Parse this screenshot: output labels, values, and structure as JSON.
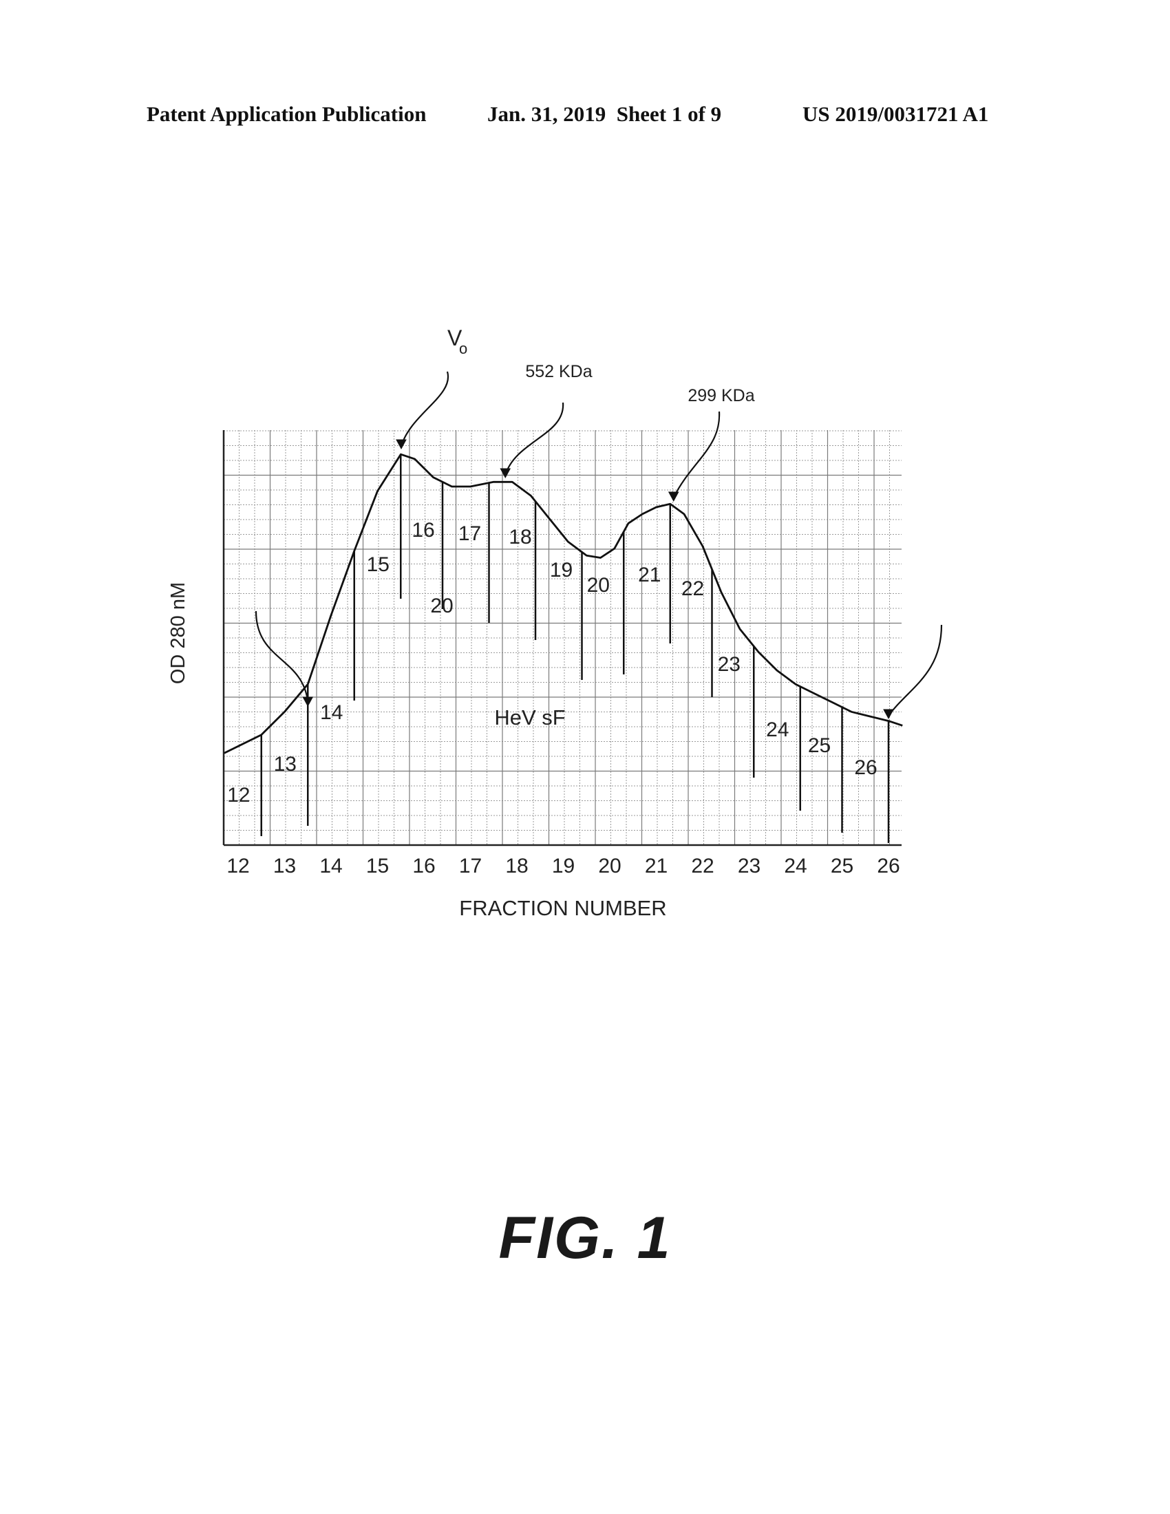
{
  "header": {
    "publication": "Patent Application Publication",
    "date_sheet": "Jan. 31, 2019  Sheet 1 of 9",
    "number": "US 2019/0031721 A1"
  },
  "figure_label": "FIG. 1",
  "chart_data": {
    "type": "line",
    "xlabel": "FRACTION NUMBER",
    "ylabel": "OD 280 nM",
    "xlim": [
      11.7,
      26.3
    ],
    "ylim": [
      0,
      1
    ],
    "x_ticks": [
      "12",
      "13",
      "14",
      "15",
      "16",
      "17",
      "18",
      "19",
      "20",
      "21",
      "22",
      "23",
      "24",
      "25",
      "26"
    ],
    "grid": true,
    "series": [
      {
        "name": "HeV sF",
        "x": [
          11.7,
          12.5,
          13.0,
          13.5,
          14.0,
          14.5,
          15.0,
          15.5,
          15.8,
          16.2,
          16.6,
          17.0,
          17.5,
          17.9,
          18.3,
          18.7,
          19.1,
          19.5,
          19.8,
          20.1,
          20.4,
          20.7,
          21.0,
          21.3,
          21.6,
          22.0,
          22.4,
          22.8,
          23.2,
          23.6,
          24.0,
          24.4,
          24.8,
          25.2,
          25.6,
          26.0,
          26.3
        ],
        "y": [
          0.2,
          0.24,
          0.29,
          0.35,
          0.5,
          0.64,
          0.77,
          0.85,
          0.84,
          0.8,
          0.78,
          0.78,
          0.79,
          0.79,
          0.76,
          0.71,
          0.66,
          0.63,
          0.625,
          0.645,
          0.7,
          0.72,
          0.735,
          0.742,
          0.72,
          0.65,
          0.55,
          0.47,
          0.42,
          0.38,
          0.35,
          0.33,
          0.31,
          0.29,
          0.28,
          0.27,
          0.26
        ]
      }
    ],
    "fraction_markers": [
      {
        "x": 12.5,
        "label": "12"
      },
      {
        "x": 13.5,
        "label": "13"
      },
      {
        "x": 14.5,
        "label": "14"
      },
      {
        "x": 15.5,
        "label": "15"
      },
      {
        "x": 16.4,
        "label": "16"
      },
      {
        "x": 17.4,
        "label": "17"
      },
      {
        "x": 18.4,
        "label": "18"
      },
      {
        "x": 19.4,
        "label": "19"
      },
      {
        "x": 20.3,
        "label": "20"
      },
      {
        "x": 21.3,
        "label": "21"
      },
      {
        "x": 22.2,
        "label": "22"
      },
      {
        "x": 23.1,
        "label": "23"
      },
      {
        "x": 24.1,
        "label": "24"
      },
      {
        "x": 25.0,
        "label": "25"
      },
      {
        "x": 26.0,
        "label": "26"
      }
    ],
    "annotations": [
      {
        "text": "V",
        "sub": "o",
        "x": 15.6
      },
      {
        "text": "552 KDa",
        "x": 17.9
      },
      {
        "text": "299 KDa",
        "x": 21.3
      }
    ],
    "plot_label": "HeV sF",
    "stray_label": "20"
  }
}
